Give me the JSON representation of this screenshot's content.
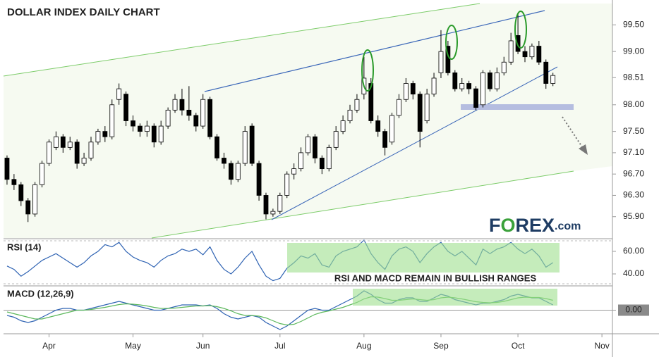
{
  "chart_data": [
    {
      "type": "candlestick",
      "title": "DOLLAR INDEX DAILY CHART",
      "up_color": "#ffffff",
      "down_color": "#000000",
      "open": [
        97.0,
        96.6,
        96.5,
        96.2,
        95.95,
        96.5,
        96.9,
        97.2,
        97.4,
        97.2,
        97.3,
        96.9,
        97.0,
        97.3,
        97.5,
        97.4,
        98.1,
        98.2,
        97.7,
        97.6,
        97.5,
        97.6,
        97.3,
        97.6,
        97.9,
        98.1,
        97.9,
        97.8,
        97.6,
        98.1,
        97.4,
        97.0,
        96.9,
        96.6,
        96.9,
        97.6,
        96.9,
        96.3,
        95.95,
        96.0,
        96.3,
        96.7,
        96.8,
        97.1,
        97.4,
        97.0,
        96.8,
        97.2,
        97.5,
        97.7,
        97.9,
        98.2,
        98.4,
        97.7,
        97.5,
        97.3,
        97.8,
        98.1,
        98.4,
        98.2,
        97.7,
        98.2,
        98.6,
        99.1,
        98.6,
        98.3,
        98.4,
        98.3,
        98.0,
        98.6,
        98.3,
        98.6,
        98.8,
        99.3,
        99.0,
        98.9,
        99.1,
        98.8,
        98.4,
        null,
        null,
        null,
        null,
        null,
        null,
        null,
        null
      ],
      "high": [
        97.05,
        96.7,
        96.55,
        96.25,
        96.55,
        96.95,
        97.35,
        97.5,
        97.45,
        97.4,
        97.35,
        97.1,
        97.4,
        97.55,
        97.6,
        98.1,
        98.4,
        98.25,
        97.8,
        97.65,
        97.7,
        97.65,
        97.7,
        97.95,
        98.2,
        98.3,
        98.35,
        97.85,
        98.2,
        98.15,
        97.45,
        97.1,
        96.95,
        96.95,
        97.6,
        97.65,
        96.95,
        96.35,
        96.05,
        96.35,
        96.75,
        96.9,
        97.2,
        97.45,
        97.45,
        97.05,
        97.25,
        97.6,
        97.8,
        98.0,
        98.2,
        98.9,
        98.5,
        97.8,
        97.55,
        97.85,
        98.2,
        98.5,
        98.45,
        98.25,
        98.3,
        98.6,
        99.4,
        99.2,
        98.65,
        98.5,
        98.45,
        98.35,
        98.65,
        98.65,
        98.7,
        98.9,
        99.35,
        99.7,
        99.1,
        99.15,
        99.2,
        98.85,
        98.6,
        null,
        null,
        null,
        null,
        null,
        null,
        null,
        null
      ],
      "low": [
        96.5,
        96.4,
        96.1,
        95.8,
        95.9,
        96.45,
        96.85,
        97.15,
        97.1,
        97.15,
        96.8,
        96.85,
        96.95,
        97.25,
        97.3,
        97.35,
        98.0,
        97.6,
        97.5,
        97.4,
        97.4,
        97.2,
        97.25,
        97.55,
        97.85,
        97.8,
        97.7,
        97.5,
        97.55,
        97.35,
        96.95,
        96.8,
        96.5,
        96.55,
        96.85,
        96.85,
        96.2,
        95.85,
        95.9,
        95.95,
        96.25,
        96.6,
        96.75,
        97.05,
        96.9,
        96.7,
        96.75,
        97.15,
        97.45,
        97.65,
        97.85,
        98.1,
        97.65,
        97.4,
        97.05,
        97.25,
        97.75,
        98.05,
        98.1,
        97.2,
        97.65,
        98.15,
        98.5,
        98.55,
        98.25,
        98.25,
        98.2,
        97.9,
        97.95,
        98.25,
        98.25,
        98.55,
        98.75,
        98.95,
        98.8,
        98.85,
        98.75,
        98.3,
        98.35,
        null,
        null,
        null,
        null,
        null,
        null,
        null,
        null
      ],
      "close": [
        96.6,
        96.5,
        96.2,
        95.95,
        96.5,
        96.9,
        97.3,
        97.4,
        97.2,
        97.3,
        96.9,
        97.0,
        97.3,
        97.5,
        97.4,
        98.0,
        98.3,
        97.7,
        97.6,
        97.5,
        97.6,
        97.3,
        97.6,
        97.9,
        98.1,
        97.9,
        97.8,
        97.6,
        98.1,
        97.4,
        97.0,
        96.9,
        96.6,
        96.9,
        97.5,
        96.9,
        96.3,
        95.95,
        96.0,
        96.3,
        96.7,
        96.8,
        97.1,
        97.4,
        97.0,
        96.8,
        97.2,
        97.5,
        97.7,
        97.9,
        98.1,
        98.5,
        97.7,
        97.5,
        97.2,
        97.8,
        98.1,
        98.4,
        98.2,
        97.5,
        98.2,
        98.5,
        99.0,
        98.6,
        98.3,
        98.4,
        98.3,
        97.95,
        98.6,
        98.3,
        98.6,
        98.8,
        99.2,
        99.0,
        98.9,
        99.1,
        98.8,
        98.4,
        98.55,
        null,
        null,
        null,
        null,
        null,
        null,
        null,
        null
      ],
      "ylim": [
        95.5,
        99.9
      ],
      "yticks": [
        {
          "value": 99.5,
          "label": "99.50"
        },
        {
          "value": 99,
          "label": "99.00"
        },
        98.51,
        {
          "value": 98,
          "label": "98.00"
        },
        {
          "value": 97.5,
          "label": "97.50"
        },
        {
          "value": 97.1,
          "label": "97.10"
        },
        {
          "value": 96.7,
          "label": "96.70"
        },
        {
          "value": 96.3,
          "label": "96.30"
        },
        {
          "value": 95.9,
          "label": "95.90"
        }
      ]
    },
    {
      "type": "line",
      "title": "RSI (14)",
      "annotation": "RSI AND MACD REMAIN IN BULLISH RANGES",
      "series": [
        {
          "color": "#2f63b3",
          "values": [
            47,
            44,
            38,
            42,
            47,
            52,
            55,
            58,
            54,
            50,
            46,
            50,
            56,
            60,
            66,
            64,
            68,
            60,
            55,
            52,
            50,
            46,
            52,
            56,
            58,
            62,
            60,
            62,
            57,
            64,
            52,
            44,
            40,
            46,
            54,
            60,
            48,
            38,
            34,
            36,
            45,
            50,
            56,
            54,
            58,
            48,
            46,
            56,
            60,
            62,
            64,
            70,
            58,
            50,
            44,
            56,
            62,
            64,
            60,
            50,
            58,
            64,
            68,
            60,
            56,
            60,
            54,
            48,
            62,
            58,
            62,
            64,
            68,
            62,
            58,
            62,
            56,
            46,
            50,
            null,
            null,
            null,
            null,
            null,
            null,
            null,
            null
          ]
        }
      ],
      "ylim": [
        30,
        70.6
      ],
      "yticks": [
        {
          "value": 60,
          "label": "60.00"
        },
        {
          "value": 40,
          "label": "40.00"
        }
      ]
    },
    {
      "type": "line",
      "title": "MACD (12,26,9)",
      "grid": true,
      "categories": [
        null,
        null,
        null,
        null,
        null,
        null,
        "Apr",
        null,
        null,
        null,
        null,
        null,
        null,
        null,
        null,
        null,
        null,
        null,
        "May",
        null,
        null,
        null,
        null,
        null,
        null,
        null,
        null,
        null,
        "Jun",
        null,
        null,
        null,
        null,
        null,
        null,
        null,
        null,
        null,
        null,
        "Jul",
        null,
        null,
        null,
        null,
        null,
        null,
        null,
        null,
        null,
        null,
        null,
        "Aug",
        null,
        null,
        null,
        null,
        null,
        null,
        null,
        null,
        null,
        null,
        "Sep",
        null,
        null,
        null,
        null,
        null,
        null,
        null,
        null,
        null,
        null,
        "Oct",
        null,
        null,
        null,
        null,
        null,
        null,
        null,
        null,
        null,
        null,
        null,
        "Nov",
        null
      ],
      "series": [
        {
          "color": "#2f63b3",
          "values": [
            -0.15,
            -0.2,
            -0.3,
            -0.35,
            -0.3,
            -0.2,
            -0.1,
            0.0,
            0.05,
            0.05,
            0.0,
            0.0,
            0.05,
            0.1,
            0.15,
            0.2,
            0.25,
            0.2,
            0.15,
            0.1,
            0.05,
            0.0,
            0.0,
            0.05,
            0.1,
            0.15,
            0.15,
            0.15,
            0.12,
            0.15,
            0.05,
            -0.1,
            -0.2,
            -0.25,
            -0.2,
            -0.15,
            -0.2,
            -0.35,
            -0.45,
            -0.55,
            -0.45,
            -0.3,
            -0.15,
            0.0,
            0.05,
            0.0,
            0.0,
            0.1,
            0.2,
            0.3,
            0.4,
            0.55,
            0.45,
            0.3,
            0.2,
            0.2,
            0.3,
            0.35,
            0.35,
            0.25,
            0.25,
            0.35,
            0.45,
            0.4,
            0.3,
            0.25,
            0.2,
            0.15,
            0.2,
            0.2,
            0.25,
            0.3,
            0.4,
            0.45,
            0.4,
            0.35,
            0.35,
            0.25,
            0.15,
            null,
            null,
            null,
            null,
            null,
            null,
            null,
            null
          ]
        },
        {
          "color": "#5cb85c",
          "values": [
            -0.05,
            -0.1,
            -0.15,
            -0.2,
            -0.25,
            -0.25,
            -0.2,
            -0.15,
            -0.1,
            -0.05,
            0.0,
            0.0,
            0.02,
            0.05,
            0.08,
            0.12,
            0.16,
            0.18,
            0.17,
            0.15,
            0.12,
            0.08,
            0.05,
            0.05,
            0.06,
            0.08,
            0.1,
            0.12,
            0.12,
            0.13,
            0.1,
            0.05,
            -0.02,
            -0.1,
            -0.15,
            -0.15,
            -0.17,
            -0.22,
            -0.3,
            -0.38,
            -0.42,
            -0.4,
            -0.32,
            -0.22,
            -0.12,
            -0.06,
            -0.02,
            0.03,
            0.08,
            0.15,
            0.22,
            0.32,
            0.38,
            0.37,
            0.33,
            0.28,
            0.28,
            0.3,
            0.32,
            0.3,
            0.28,
            0.3,
            0.35,
            0.37,
            0.35,
            0.32,
            0.28,
            0.24,
            0.22,
            0.21,
            0.22,
            0.25,
            0.3,
            0.35,
            0.37,
            0.36,
            0.36,
            0.33,
            0.28,
            null,
            null,
            null,
            null,
            null,
            null,
            null,
            null
          ]
        }
      ],
      "ylim": [
        -0.65,
        0.65
      ],
      "yticks": [
        {
          "value": 0,
          "label": "0.00"
        }
      ]
    }
  ],
  "logo": [
    "F",
    "O",
    "REX",
    ".com"
  ]
}
